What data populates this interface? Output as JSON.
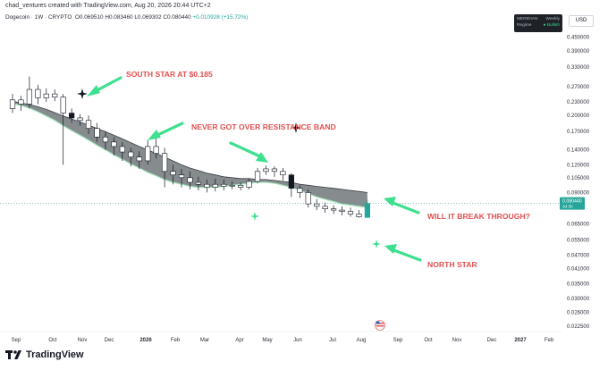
{
  "header": {
    "credit": "chad_ventures created with TradingView.com, Aug 20, 2026 20:44 UTC+2",
    "symbol_name": "Dogecoin · 1W · CRYPTO",
    "ohlc": "O0.069510 H0.083460 L0.069302 C0.080440",
    "change": "+0.010928 (+15.72%)"
  },
  "currency_button": "USD",
  "indicator_box": {
    "title": "MERIDIAN",
    "timeframe": "Weekly",
    "regime_label": "Regime",
    "regime_value": "● Bullish"
  },
  "price_tag": {
    "value": "0.080440",
    "countdown": "3d 3h"
  },
  "footer": {
    "brand": "TradingView"
  },
  "colors": {
    "up": "#26a69a",
    "candle_body": "#ffffff",
    "candle_dark": "#131722",
    "band": "#5d6468",
    "annotation_text": "#e04f4f",
    "arrow": "#3ee08f",
    "price_tag": "#26a69a"
  },
  "chart_data": {
    "type": "candlestick",
    "yscale": "log",
    "ylim": [
      0.0213,
      0.55
    ],
    "y_ticks": [
      "0.450000",
      "0.390000",
      "0.330000",
      "0.270000",
      "0.230000",
      "0.200000",
      "0.170000",
      "0.140000",
      "0.120000",
      "0.105000",
      "0.090000",
      "0.065000",
      "0.055000",
      "0.047000",
      "0.041000",
      "0.035000",
      "0.030000",
      "0.026000",
      "0.022500"
    ],
    "x_ticks": [
      "Sep",
      "Oct",
      "Nov",
      "Dec",
      "2026",
      "Feb",
      "Mar",
      "Apr",
      "May",
      "Jun",
      "Jul",
      "Aug",
      "Sep",
      "Oct",
      "Nov",
      "Dec",
      "2027",
      "Feb"
    ],
    "x_ticks_bold": [
      "2026",
      "2027"
    ],
    "candles": [
      [
        0.215,
        0.235,
        0.25,
        0.205
      ],
      [
        0.235,
        0.225,
        0.245,
        0.21
      ],
      [
        0.225,
        0.262,
        0.3,
        0.215
      ],
      [
        0.262,
        0.24,
        0.275,
        0.225
      ],
      [
        0.24,
        0.25,
        0.265,
        0.23
      ],
      [
        0.25,
        0.242,
        0.262,
        0.232
      ],
      [
        0.242,
        0.205,
        0.25,
        0.12
      ],
      [
        0.205,
        0.195,
        0.215,
        0.185
      ],
      [
        0.195,
        0.19,
        0.203,
        0.18
      ],
      [
        0.19,
        0.175,
        0.2,
        0.165
      ],
      [
        0.175,
        0.16,
        0.185,
        0.152
      ],
      [
        0.16,
        0.152,
        0.17,
        0.14
      ],
      [
        0.152,
        0.145,
        0.16,
        0.132
      ],
      [
        0.145,
        0.137,
        0.152,
        0.125
      ],
      [
        0.137,
        0.13,
        0.143,
        0.118
      ],
      [
        0.13,
        0.125,
        0.138,
        0.115
      ],
      [
        0.125,
        0.145,
        0.155,
        0.12
      ],
      [
        0.145,
        0.135,
        0.16,
        0.128
      ],
      [
        0.135,
        0.112,
        0.143,
        0.095
      ],
      [
        0.112,
        0.108,
        0.12,
        0.098
      ],
      [
        0.108,
        0.105,
        0.115,
        0.095
      ],
      [
        0.105,
        0.1,
        0.112,
        0.093
      ],
      [
        0.1,
        0.098,
        0.106,
        0.092
      ],
      [
        0.098,
        0.095,
        0.103,
        0.09
      ],
      [
        0.095,
        0.098,
        0.104,
        0.091
      ],
      [
        0.098,
        0.096,
        0.103,
        0.092
      ],
      [
        0.096,
        0.097,
        0.101,
        0.093
      ],
      [
        0.097,
        0.095,
        0.1,
        0.092
      ],
      [
        0.095,
        0.101,
        0.104,
        0.093
      ],
      [
        0.101,
        0.112,
        0.116,
        0.099
      ],
      [
        0.112,
        0.115,
        0.119,
        0.108
      ],
      [
        0.115,
        0.112,
        0.118,
        0.106
      ],
      [
        0.112,
        0.108,
        0.116,
        0.102
      ],
      [
        0.108,
        0.094,
        0.11,
        0.086
      ],
      [
        0.094,
        0.09,
        0.097,
        0.085
      ],
      [
        0.09,
        0.08,
        0.093,
        0.077
      ],
      [
        0.08,
        0.078,
        0.084,
        0.075
      ],
      [
        0.078,
        0.076,
        0.081,
        0.073
      ],
      [
        0.076,
        0.075,
        0.079,
        0.072
      ],
      [
        0.075,
        0.074,
        0.078,
        0.071
      ],
      [
        0.074,
        0.072,
        0.077,
        0.07
      ],
      [
        0.072,
        0.07,
        0.075,
        0.0693
      ],
      [
        0.0695,
        0.0804,
        0.0835,
        0.0693
      ]
    ],
    "band_upper": [
      0.232,
      0.228,
      0.224,
      0.219,
      0.213,
      0.206,
      0.199,
      0.193,
      0.187,
      0.181,
      0.175,
      0.169,
      0.163,
      0.157,
      0.151,
      0.145,
      0.14,
      0.135,
      0.13,
      0.125,
      0.12,
      0.116,
      0.113,
      0.11,
      0.108,
      0.106,
      0.105,
      0.104,
      0.104,
      0.103,
      0.103,
      0.102,
      0.101,
      0.1,
      0.098,
      0.097,
      0.096,
      0.095,
      0.094,
      0.093,
      0.092,
      0.091,
      0.09
    ],
    "band_lower": [
      0.226,
      0.222,
      0.216,
      0.208,
      0.199,
      0.19,
      0.18,
      0.171,
      0.163,
      0.155,
      0.147,
      0.14,
      0.133,
      0.127,
      0.121,
      0.116,
      0.111,
      0.107,
      0.103,
      0.1,
      0.098,
      0.096,
      0.095,
      0.095,
      0.095,
      0.096,
      0.097,
      0.098,
      0.099,
      0.1,
      0.1,
      0.099,
      0.097,
      0.095,
      0.092,
      0.089,
      0.086,
      0.084,
      0.082,
      0.08,
      0.079,
      0.078,
      0.077
    ],
    "annotations": [
      {
        "text": "SOUTH STAR AT $0.185"
      },
      {
        "text": "NEVER GOT OVER RESISTANCE BAND"
      },
      {
        "text": "WILL IT BREAK THROUGH?"
      },
      {
        "text": "NORTH STAR"
      }
    ]
  }
}
